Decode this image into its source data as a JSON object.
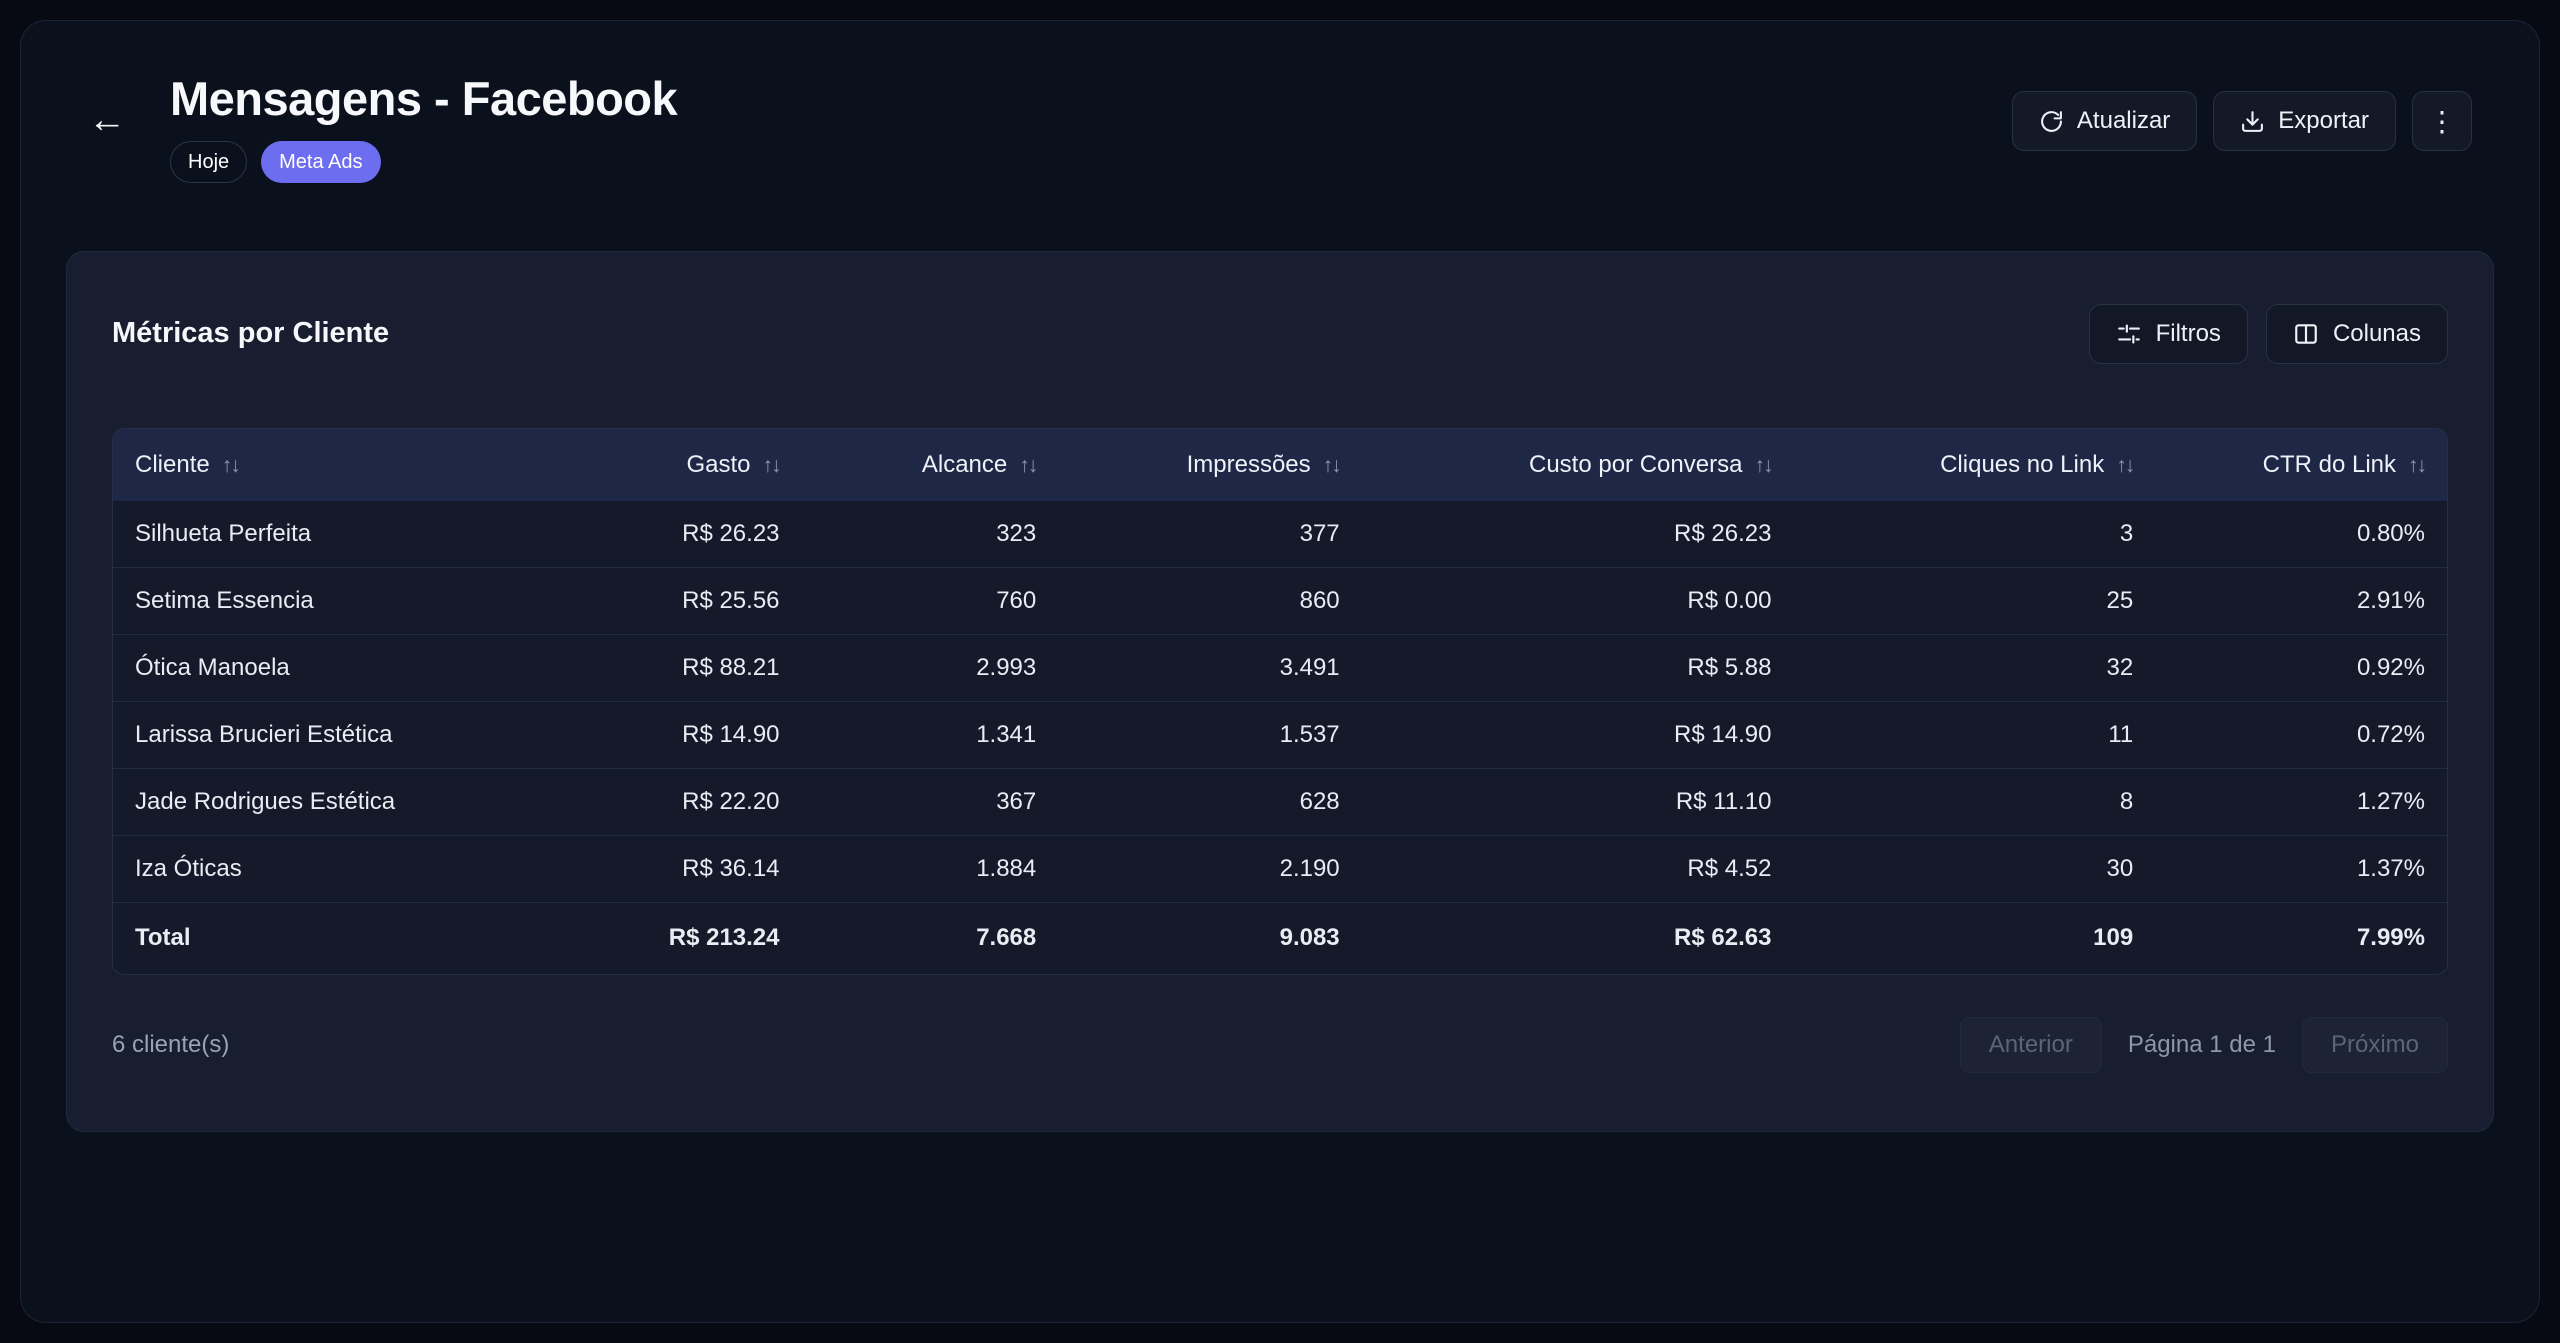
{
  "page": {
    "title": "Mensagens - Facebook",
    "badges": [
      {
        "label": "Hoje",
        "type": "outline"
      },
      {
        "label": "Meta Ads",
        "type": "accent"
      }
    ],
    "actions": {
      "refresh": "Atualizar",
      "export": "Exportar",
      "more_icon": "⋮"
    },
    "back_icon": "←"
  },
  "card": {
    "title": "Métricas por Cliente",
    "filters_label": "Filtros",
    "columns_label": "Colunas",
    "footer": {
      "count": "6 cliente(s)",
      "prev": "Anterior",
      "page": "Página 1 de 1",
      "next": "Próximo"
    }
  },
  "table": {
    "sort_icon": "↑↓",
    "columns": [
      {
        "label": "Cliente",
        "align": "left"
      },
      {
        "label": "Gasto",
        "align": "right"
      },
      {
        "label": "Alcance",
        "align": "right"
      },
      {
        "label": "Impressões",
        "align": "right"
      },
      {
        "label": "Custo por Conversa",
        "align": "right"
      },
      {
        "label": "Cliques no Link",
        "align": "right"
      },
      {
        "label": "CTR do Link",
        "align": "right"
      }
    ],
    "rows": [
      [
        "Silhueta Perfeita",
        "R$ 26.23",
        "323",
        "377",
        "R$ 26.23",
        "3",
        "0.80%"
      ],
      [
        "Setima Essencia",
        "R$ 25.56",
        "760",
        "860",
        "R$ 0.00",
        "25",
        "2.91%"
      ],
      [
        "Ótica Manoela",
        "R$ 88.21",
        "2.993",
        "3.491",
        "R$ 5.88",
        "32",
        "0.92%"
      ],
      [
        "Larissa Brucieri Estética",
        "R$ 14.90",
        "1.341",
        "1.537",
        "R$ 14.90",
        "11",
        "0.72%"
      ],
      [
        "Jade Rodrigues Estética",
        "R$ 22.20",
        "367",
        "628",
        "R$ 11.10",
        "8",
        "1.27%"
      ],
      [
        "Iza Óticas",
        "R$ 36.14",
        "1.884",
        "2.190",
        "R$ 4.52",
        "30",
        "1.37%"
      ]
    ],
    "total": [
      "Total",
      "R$ 213.24",
      "7.668",
      "9.083",
      "R$ 62.63",
      "109",
      "7.99%"
    ]
  },
  "colors": {
    "accent": "#6d6df0",
    "header_row_bg": "#1e2846",
    "card_bg": "#181d2f",
    "page_bg": "#0b101d",
    "row_bg": "#151a2b"
  }
}
